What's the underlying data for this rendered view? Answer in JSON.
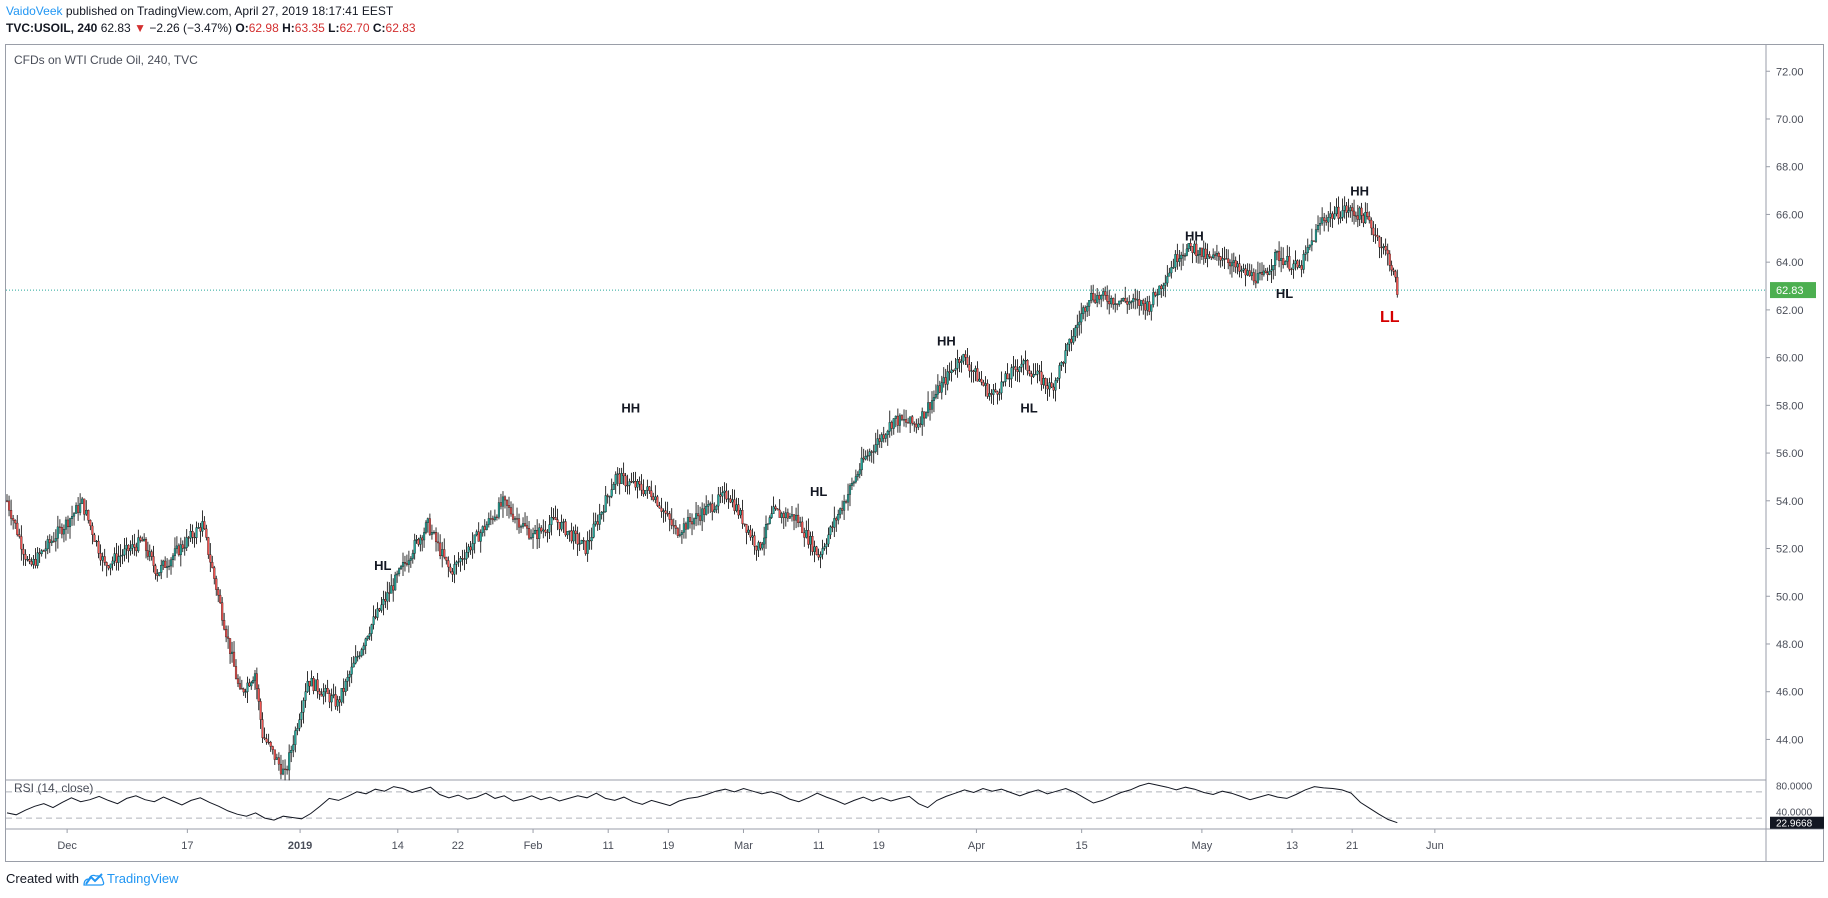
{
  "header": {
    "author": "VaidoVeek",
    "published_text": "published on TradingView.com, April 27, 2019 18:17:41 EEST",
    "symbol_line": {
      "symbol": "TVC:USOIL, 240",
      "last": "62.83",
      "change": "−2.26 (−3.47%)",
      "open_label": "O:",
      "open": "62.98",
      "high_label": "H:",
      "high": "63.35",
      "low_label": "L:",
      "low": "62.70",
      "close_label": "C:",
      "close": "62.83"
    }
  },
  "chart_title": "CFDs on WTI Crude Oil, 240, TVC",
  "rsi_label": "RSI (14, close)",
  "footer": {
    "created_with": "Created with",
    "brand": "TradingView"
  },
  "colors": {
    "up": "#26a69a",
    "down": "#ef5350",
    "price_line": "#26a69a",
    "price_tag": "#4caf50",
    "hh_hl_text": "#131722",
    "ll_text": "#d50000",
    "rsi_line": "#131722"
  },
  "chart_data": {
    "type": "candlestick",
    "ylim": [
      42.3,
      73.1
    ],
    "y_ticks": [
      "72.00",
      "70.00",
      "68.00",
      "66.00",
      "64.00",
      "62.00",
      "60.00",
      "58.00",
      "56.00",
      "54.00",
      "52.00",
      "50.00",
      "48.00",
      "46.00",
      "44.00"
    ],
    "x_tick_labels": [
      "Dec",
      "17",
      "2019",
      "14",
      "22",
      "Feb",
      "11",
      "19",
      "Mar",
      "11",
      "19",
      "Apr",
      "15",
      "May",
      "13",
      "21",
      "Jun"
    ],
    "last_price_label": "62.83",
    "price_path_pivots": [
      {
        "date": "2018-11-23",
        "price": 54.0
      },
      {
        "date": "2018-11-26",
        "price": 51.2
      },
      {
        "date": "2018-12-03",
        "price": 53.9
      },
      {
        "date": "2018-12-06",
        "price": 51.3
      },
      {
        "date": "2018-12-11",
        "price": 52.3
      },
      {
        "date": "2018-12-13",
        "price": 51.0
      },
      {
        "date": "2018-12-19",
        "price": 53.0
      },
      {
        "date": "2018-12-24",
        "price": 45.9
      },
      {
        "date": "2018-12-26",
        "price": 46.8
      },
      {
        "date": "2018-12-27",
        "price": 44.2
      },
      {
        "date": "2018-12-30",
        "price": 42.5
      },
      {
        "date": "2019-01-02",
        "price": 46.5
      },
      {
        "date": "2019-01-06",
        "price": 45.5
      },
      {
        "date": "2019-01-10",
        "price": 48.5
      },
      {
        "date": "2019-01-16",
        "price": 52.0
      },
      {
        "date": "2019-01-18",
        "price": 53.0
      },
      {
        "date": "2019-01-21",
        "price": 51.0
      },
      {
        "date": "2019-01-28",
        "price": 53.9
      },
      {
        "date": "2019-02-01",
        "price": 52.5
      },
      {
        "date": "2019-02-04",
        "price": 53.2
      },
      {
        "date": "2019-02-08",
        "price": 52.0
      },
      {
        "date": "2019-02-12",
        "price": 55.0
      },
      {
        "date": "2019-02-17",
        "price": 54.3
      },
      {
        "date": "2019-02-20",
        "price": 52.7
      },
      {
        "date": "2019-02-27",
        "price": 54.3
      },
      {
        "date": "2019-03-03",
        "price": 52.0
      },
      {
        "date": "2019-03-05",
        "price": 53.5
      },
      {
        "date": "2019-03-08",
        "price": 53.3
      },
      {
        "date": "2019-03-11",
        "price": 51.7
      },
      {
        "date": "2019-03-17",
        "price": 55.7
      },
      {
        "date": "2019-03-21",
        "price": 57.4
      },
      {
        "date": "2019-03-24",
        "price": 57.2
      },
      {
        "date": "2019-03-30",
        "price": 60.1
      },
      {
        "date": "2019-04-03",
        "price": 58.4
      },
      {
        "date": "2019-04-07",
        "price": 59.8
      },
      {
        "date": "2019-04-11",
        "price": 58.7
      },
      {
        "date": "2019-04-16",
        "price": 62.6
      },
      {
        "date": "2019-04-24",
        "price": 62.2
      },
      {
        "date": "2019-04-28",
        "price": 64.4
      },
      {
        "date": "2019-04-30",
        "price": 64.6
      },
      {
        "date": "2019-05-02",
        "price": 64.1
      },
      {
        "date": "2019-05-04",
        "price": 64.3
      },
      {
        "date": "2019-05-06",
        "price": 63.6
      },
      {
        "date": "2019-05-09",
        "price": 63.3
      },
      {
        "date": "2019-05-11",
        "price": 64.3
      },
      {
        "date": "2019-05-14",
        "price": 63.7
      },
      {
        "date": "2019-05-17",
        "price": 65.8
      },
      {
        "date": "2019-05-20",
        "price": 66.2
      },
      {
        "date": "2019-05-22",
        "price": 66.0
      },
      {
        "date": "2019-05-23",
        "price": 65.8
      },
      {
        "date": "2019-05-26",
        "price": 64.1
      },
      {
        "date": "2019-05-27",
        "price": 62.83
      }
    ],
    "annotations": [
      {
        "text": "HL",
        "date": "2019-01-12",
        "price": 51.1
      },
      {
        "text": "HH",
        "date": "2019-02-14",
        "price": 57.7
      },
      {
        "text": "HL",
        "date": "2019-03-11",
        "price": 54.2
      },
      {
        "text": "HH",
        "date": "2019-03-28",
        "price": 60.5
      },
      {
        "text": "HL",
        "date": "2019-04-08",
        "price": 57.7
      },
      {
        "text": "HH",
        "date": "2019-04-30",
        "price": 64.9
      },
      {
        "text": "HL",
        "date": "2019-05-12",
        "price": 62.5
      },
      {
        "text": "HH",
        "date": "2019-05-22",
        "price": 66.8
      },
      {
        "text": "LL",
        "date": "2019-05-26",
        "price": 61.5
      }
    ],
    "rsi": {
      "ylim": [
        15,
        88
      ],
      "ticks": [
        "80.0000",
        "40.0000"
      ],
      "bands": [
        70,
        30
      ],
      "last_label": "22.9668",
      "values": [
        38,
        35,
        42,
        48,
        52,
        46,
        54,
        61,
        55,
        58,
        63,
        57,
        52,
        60,
        64,
        58,
        55,
        62,
        56,
        50,
        57,
        61,
        54,
        48,
        41,
        36,
        33,
        38,
        30,
        27,
        33,
        31,
        29,
        37,
        48,
        60,
        57,
        63,
        70,
        67,
        74,
        71,
        78,
        75,
        69,
        73,
        77,
        66,
        61,
        65,
        59,
        62,
        68,
        60,
        64,
        56,
        59,
        64,
        58,
        62,
        56,
        60,
        64,
        61,
        68,
        60,
        57,
        62,
        55,
        51,
        57,
        53,
        49,
        56,
        60,
        62,
        66,
        71,
        74,
        70,
        75,
        71,
        67,
        70,
        66,
        59,
        55,
        61,
        68,
        62,
        57,
        51,
        57,
        62,
        56,
        61,
        56,
        60,
        63,
        52,
        46,
        57,
        63,
        68,
        73,
        69,
        75,
        71,
        74,
        69,
        64,
        69,
        73,
        67,
        71,
        75,
        69,
        61,
        53,
        57,
        63,
        69,
        73,
        79,
        83,
        80,
        77,
        73,
        77,
        74,
        69,
        66,
        71,
        68,
        63,
        58,
        62,
        66,
        62,
        60,
        66,
        73,
        78,
        76,
        75,
        73,
        68,
        54,
        45,
        36,
        28,
        23
      ]
    }
  }
}
